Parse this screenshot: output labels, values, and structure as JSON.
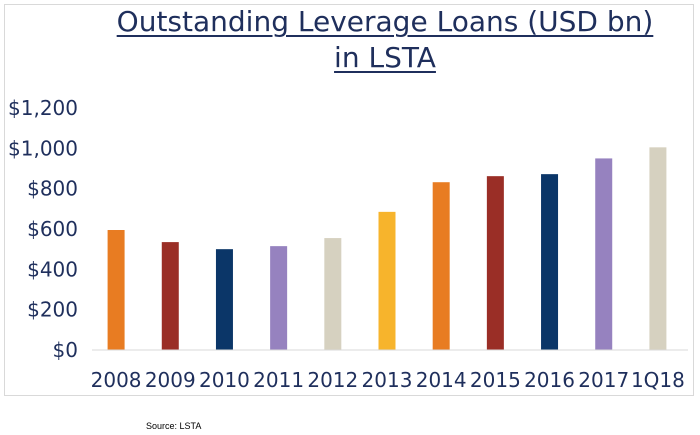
{
  "chart_data": {
    "type": "bar",
    "title_lines": [
      "Outstanding Leverage Loans (USD bn)",
      "in LSTA"
    ],
    "categories": [
      "2008",
      "2009",
      "2010",
      "2011",
      "2012",
      "2013",
      "2014",
      "2015",
      "2016",
      "2017",
      "1Q18"
    ],
    "values": [
      595,
      535,
      500,
      515,
      555,
      685,
      832,
      862,
      872,
      950,
      1005
    ],
    "colors": [
      "#e87c22",
      "#9a2e26",
      "#0b3668",
      "#9682bf",
      "#d6d1c0",
      "#f7b42c",
      "#e87c22",
      "#9a2e26",
      "#0b3668",
      "#9682bf",
      "#d6d1c0"
    ],
    "yticks": [
      0,
      200,
      400,
      600,
      800,
      1000,
      1200
    ],
    "ytick_labels": [
      "$0",
      "$200",
      "$400",
      "$600",
      "$800",
      "$1,000",
      "$1,200"
    ],
    "ylim": [
      0,
      1200
    ],
    "xlabel": "",
    "ylabel": "",
    "grid": false,
    "legend": "none"
  },
  "source": "Source: LSTA"
}
